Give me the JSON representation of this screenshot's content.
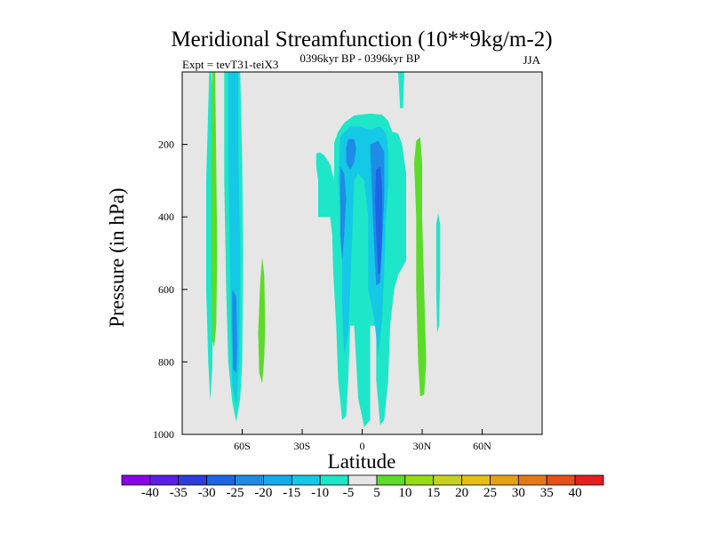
{
  "chart_data": {
    "type": "contour",
    "title": "Meridional Streamfunction (10**9kg/m-2)",
    "experiment_label": "Expt = tevT31-teiX3",
    "period_label": "0396kyr BP - 0396kyr BP",
    "season_label": "JJA",
    "xlabel": "Latitude",
    "ylabel": "Pressure (in hPa)",
    "xlim": [
      -90,
      90
    ],
    "ylim": [
      1000,
      0
    ],
    "x_ticks": [
      {
        "value": -60,
        "label": "60S"
      },
      {
        "value": -30,
        "label": "30S"
      },
      {
        "value": 0,
        "label": "0"
      },
      {
        "value": 30,
        "label": "30N"
      },
      {
        "value": 60,
        "label": "60N"
      }
    ],
    "y_ticks": [
      {
        "value": 200,
        "label": "200"
      },
      {
        "value": 400,
        "label": "400"
      },
      {
        "value": 600,
        "label": "600"
      },
      {
        "value": 800,
        "label": "800"
      },
      {
        "value": 1000,
        "label": "1000"
      }
    ],
    "background_color": "#e6e6e6",
    "colorbar": {
      "levels": [
        "-40",
        "-35",
        "-30",
        "-25",
        "-20",
        "-15",
        "-10",
        "-5",
        "5",
        "10",
        "15",
        "20",
        "25",
        "30",
        "35",
        "40"
      ],
      "colors": [
        "#8c00e6",
        "#5a1ee6",
        "#2d3cdc",
        "#1e64e6",
        "#1e8ce6",
        "#14aaf0",
        "#14c8e6",
        "#1ee6c8",
        "#e6e6e6",
        "#5adc28",
        "#96dc14",
        "#c8d21e",
        "#e6be14",
        "#e6a014",
        "#e67814",
        "#e65014",
        "#e61e1e"
      ]
    },
    "filled_regions": [
      {
        "level": "-10 to -5",
        "color": "#1ee6c8",
        "polygon": [
          [
            -76.5,
            0
          ],
          [
            -75.5,
            0
          ],
          [
            -74.5,
            80
          ],
          [
            -74,
            300
          ],
          [
            -74.5,
            600
          ],
          [
            -75,
            820
          ],
          [
            -76,
            910
          ],
          [
            -77,
            800
          ],
          [
            -78,
            600
          ],
          [
            -78,
            300
          ]
        ]
      },
      {
        "level": "-10 to -5",
        "color": "#1ee6c8",
        "polygon": [
          [
            -69,
            0
          ],
          [
            -61,
            0
          ],
          [
            -60,
            250
          ],
          [
            -59.5,
            500
          ],
          [
            -60,
            800
          ],
          [
            -61,
            900
          ],
          [
            -63,
            965
          ],
          [
            -65,
            910
          ],
          [
            -67,
            800
          ],
          [
            -68,
            600
          ],
          [
            -69,
            300
          ]
        ]
      },
      {
        "level": "-15 to -10",
        "color": "#14c8e6",
        "polygon": [
          [
            -67,
            0
          ],
          [
            -62,
            0
          ],
          [
            -62,
            200
          ],
          [
            -61,
            500
          ],
          [
            -61.5,
            800
          ],
          [
            -63,
            920
          ],
          [
            -65,
            860
          ],
          [
            -65.5,
            700
          ],
          [
            -66.5,
            400
          ],
          [
            -67,
            200
          ]
        ]
      },
      {
        "level": "-20 to -15",
        "color": "#1e8ce6",
        "polygon": [
          [
            -65,
            600
          ],
          [
            -63,
            620
          ],
          [
            -62.5,
            750
          ],
          [
            -63,
            830
          ],
          [
            -64.5,
            820
          ],
          [
            -65,
            700
          ]
        ]
      },
      {
        "level": "-10 to -5",
        "color": "#1ee6c8",
        "polygon": [
          [
            -23,
            225
          ],
          [
            -21,
            222
          ],
          [
            -19,
            230
          ],
          [
            -16,
            255
          ],
          [
            -14,
            300
          ],
          [
            -14,
            250
          ],
          [
            -14,
            195
          ],
          [
            -12,
            165
          ],
          [
            -9,
            140
          ],
          [
            -4,
            120
          ],
          [
            4,
            115
          ],
          [
            10,
            118
          ],
          [
            13,
            135
          ],
          [
            15,
            165
          ],
          [
            18,
            170
          ],
          [
            20,
            200
          ],
          [
            22,
            280
          ],
          [
            22,
            420
          ],
          [
            22,
            520
          ],
          [
            18,
            560
          ],
          [
            16,
            600
          ],
          [
            14,
            700
          ],
          [
            13,
            850
          ],
          [
            11,
            960
          ],
          [
            9,
            975
          ],
          [
            7,
            850
          ],
          [
            7,
            700
          ],
          [
            4,
            700
          ],
          [
            4,
            960
          ],
          [
            1,
            980
          ],
          [
            -2,
            900
          ],
          [
            -3,
            800
          ],
          [
            -4,
            700
          ],
          [
            -6,
            700
          ],
          [
            -7,
            850
          ],
          [
            -8,
            950
          ],
          [
            -10,
            960
          ],
          [
            -12,
            850
          ],
          [
            -13,
            700
          ],
          [
            -14.5,
            550
          ],
          [
            -15,
            450
          ],
          [
            -16,
            400
          ],
          [
            -18,
            400
          ],
          [
            -20,
            400
          ],
          [
            -22,
            400
          ],
          [
            -22,
            300
          ],
          [
            -23,
            260
          ]
        ]
      },
      {
        "level": "-15 to -10",
        "color": "#14c8e6",
        "polygon": [
          [
            -11,
            180
          ],
          [
            -6,
            150
          ],
          [
            -1,
            150
          ],
          [
            4,
            160
          ],
          [
            9,
            150
          ],
          [
            12,
            170
          ],
          [
            13,
            220
          ],
          [
            13,
            300
          ],
          [
            12,
            400
          ],
          [
            11,
            550
          ],
          [
            10,
            680
          ],
          [
            8,
            780
          ],
          [
            6,
            680
          ],
          [
            3,
            600
          ],
          [
            3,
            400
          ],
          [
            1,
            300
          ],
          [
            -2,
            280
          ],
          [
            -4,
            300
          ],
          [
            -5,
            450
          ],
          [
            -6,
            600
          ],
          [
            -7,
            720
          ],
          [
            -9,
            780
          ],
          [
            -10,
            650
          ],
          [
            -10,
            500
          ],
          [
            -11,
            380
          ],
          [
            -12,
            300
          ]
        ]
      },
      {
        "level": "-20 to -15",
        "color": "#1e8ce6",
        "polygon": [
          [
            -7,
            185
          ],
          [
            -4,
            185
          ],
          [
            -3,
            210
          ],
          [
            -4,
            250
          ],
          [
            -6,
            270
          ],
          [
            -8,
            250
          ],
          [
            -8,
            210
          ]
        ]
      },
      {
        "level": "-20 to -15",
        "color": "#1e8ce6",
        "polygon": [
          [
            4,
            200
          ],
          [
            8,
            190
          ],
          [
            11,
            220
          ],
          [
            11,
            350
          ],
          [
            10,
            480
          ],
          [
            9,
            580
          ],
          [
            7,
            590
          ],
          [
            6,
            480
          ],
          [
            5,
            350
          ]
        ]
      },
      {
        "level": "-20 to -15",
        "color": "#1e8ce6",
        "polygon": [
          [
            -11,
            260
          ],
          [
            -9,
            280
          ],
          [
            -8,
            350
          ],
          [
            -9,
            450
          ],
          [
            -10,
            520
          ],
          [
            -11,
            450
          ]
        ]
      },
      {
        "level": "-25 to -20",
        "color": "#1e64e6",
        "polygon": [
          [
            7,
            270
          ],
          [
            9,
            260
          ],
          [
            10,
            320
          ],
          [
            10,
            450
          ],
          [
            9,
            550
          ],
          [
            8,
            560
          ],
          [
            7,
            450
          ],
          [
            6.5,
            350
          ]
        ]
      },
      {
        "level": "-10 to -5",
        "color": "#1ee6c8",
        "polygon": [
          [
            18,
            0
          ],
          [
            21,
            0
          ],
          [
            20.5,
            100
          ],
          [
            19,
            100
          ],
          [
            18.5,
            50
          ]
        ]
      },
      {
        "level": "5 to 10",
        "color": "#5adc28",
        "polygon": [
          [
            -52,
            720
          ],
          [
            -51,
            580
          ],
          [
            -50,
            510
          ],
          [
            -49,
            560
          ],
          [
            -48.5,
            700
          ],
          [
            -49,
            790
          ],
          [
            -50,
            860
          ],
          [
            -51.5,
            830
          ]
        ]
      },
      {
        "level": "5 to 10",
        "color": "#5adc28",
        "polygon": [
          [
            27,
            190
          ],
          [
            29,
            180
          ],
          [
            30,
            250
          ],
          [
            30,
            400
          ],
          [
            31,
            600
          ],
          [
            32,
            800
          ],
          [
            31,
            890
          ],
          [
            29,
            895
          ],
          [
            28,
            800
          ],
          [
            27,
            600
          ],
          [
            27,
            400
          ],
          [
            26,
            250
          ]
        ]
      },
      {
        "level": "-10 to -5",
        "color": "#1ee6c8",
        "polygon": [
          [
            37,
            420
          ],
          [
            38,
            390
          ],
          [
            39,
            420
          ],
          [
            39,
            550
          ],
          [
            38.5,
            700
          ],
          [
            37.5,
            720
          ],
          [
            37,
            600
          ]
        ]
      },
      {
        "level": "5 to 10",
        "color": "#5adc28",
        "polygon": [
          [
            -75,
            0
          ],
          [
            -73.5,
            0
          ],
          [
            -73,
            250
          ],
          [
            -72.5,
            500
          ],
          [
            -73,
            700
          ],
          [
            -74,
            760
          ],
          [
            -75,
            740
          ],
          [
            -75.5,
            500
          ],
          [
            -75.5,
            250
          ]
        ]
      }
    ]
  }
}
